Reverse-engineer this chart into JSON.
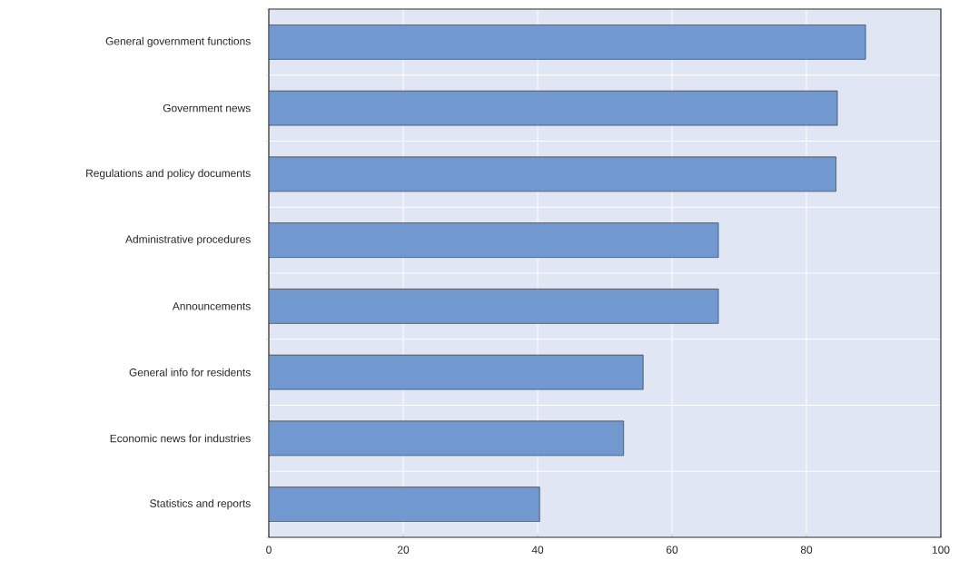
{
  "chart_data": {
    "type": "bar",
    "orientation": "horizontal",
    "categories": [
      "General government functions",
      "Government news",
      "Regulations and policy documents",
      "Administrative procedures",
      "Announcements",
      "General info for residents",
      "Economic news for industries",
      "Statistics and reports"
    ],
    "values": [
      88.8,
      84.6,
      84.4,
      66.9,
      66.9,
      55.7,
      52.8,
      40.3
    ],
    "color": "#7199cf",
    "xlim": [
      0,
      100
    ],
    "xticks": [
      0,
      20,
      40,
      60,
      80,
      100
    ],
    "grid": true
  }
}
